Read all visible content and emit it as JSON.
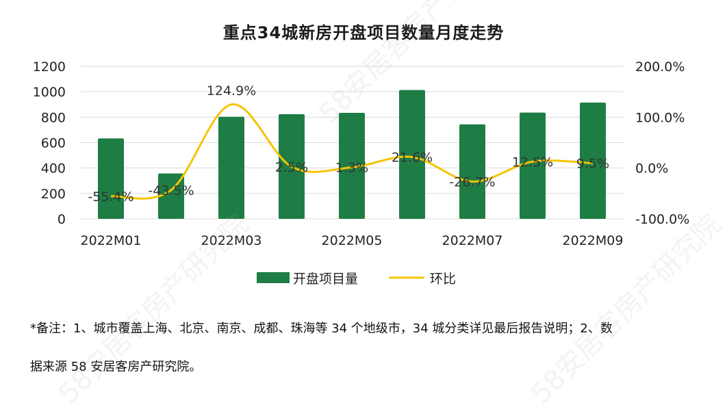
{
  "title": "重点34城新房开盘项目数量月度走势",
  "watermark": "58安居客房产研究院",
  "note": {
    "line1": "*备注：1、城市覆盖上海、北京、南京、成都、珠海等 34 个地级市，34 城分类详见最后报告说明；2、数",
    "line2": "据来源 58 安居客房产研究院。"
  },
  "colors": {
    "bar": "#1e7d45",
    "line": "#f5c400",
    "grid": "#d9d9d9"
  },
  "chart_data": {
    "type": "bar",
    "title": "重点34城新房开盘项目数量月度走势",
    "categories": [
      "2022M01",
      "2022M02",
      "2022M03",
      "2022M04",
      "2022M05",
      "2022M06",
      "2022M07",
      "2022M08",
      "2022M09"
    ],
    "x_tick_labels": [
      "2022M01",
      "",
      "2022M03",
      "",
      "2022M05",
      "",
      "2022M07",
      "",
      "2022M09"
    ],
    "ylim": [
      0,
      1200
    ],
    "y_ticks": [
      "0",
      "200",
      "400",
      "600",
      "800",
      "1000",
      "1200"
    ],
    "y2lim": [
      -100,
      200
    ],
    "y2_ticks": [
      "-100.0%",
      "0.0%",
      "100.0%",
      "200.0%"
    ],
    "legend_position": "bottom",
    "series": [
      {
        "name": "开盘项目量",
        "type": "bar",
        "axis": "left",
        "values": [
          633,
          357,
          803,
          823,
          834,
          1014,
          743,
          836,
          915
        ]
      },
      {
        "name": "环比",
        "type": "line",
        "axis": "right",
        "values": [
          -55.4,
          -43.5,
          124.9,
          2.5,
          1.3,
          21.6,
          -26.7,
          12.5,
          9.5
        ],
        "labels": [
          "-55.4%",
          "-43.5%",
          "124.9%",
          "2.5%",
          "1.3%",
          "21.6%",
          "-26.7%",
          "12.5%",
          "9.5%"
        ]
      }
    ]
  }
}
